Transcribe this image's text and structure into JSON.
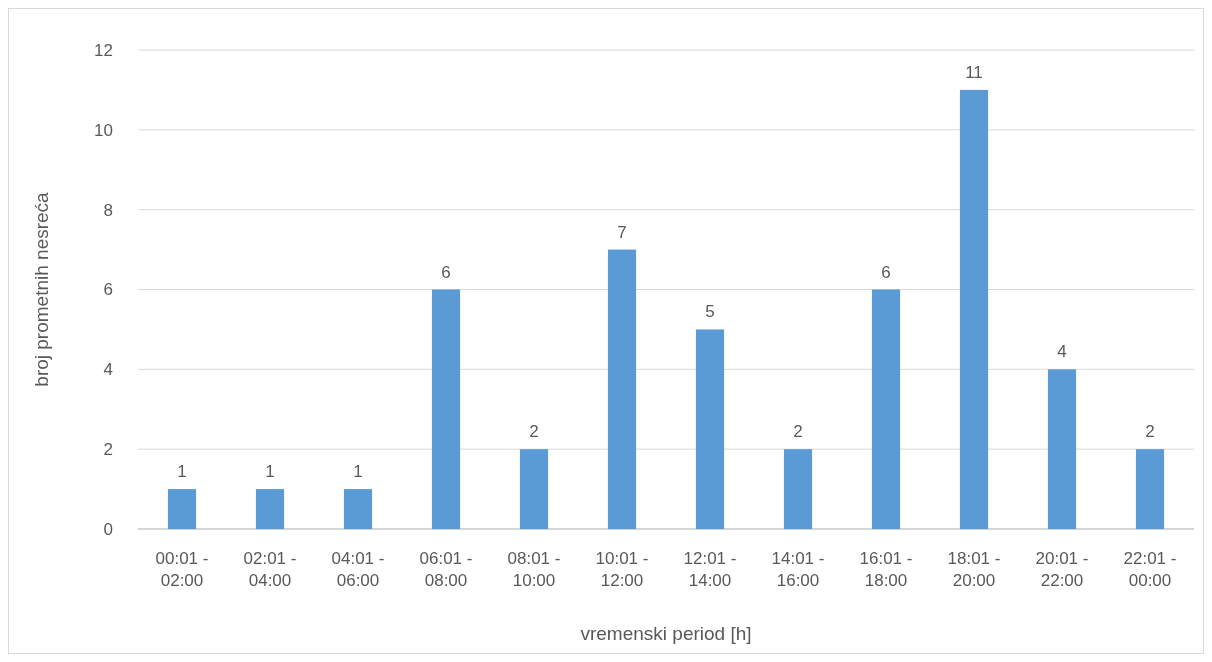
{
  "chart_data": {
    "type": "bar",
    "xlabel": "vremenski period [h]",
    "ylabel": "broj prometnih nesreća",
    "categories": [
      "00:01 - 02:00",
      "02:01 - 04:00",
      "04:01 - 06:00",
      "06:01 - 08:00",
      "08:01 - 10:00",
      "10:01 - 12:00",
      "12:01 - 14:00",
      "14:01 - 16:00",
      "16:01 - 18:00",
      "18:01 - 20:00",
      "20:01 - 22:00",
      "22:01 - 00:00"
    ],
    "values": [
      1,
      1,
      1,
      6,
      2,
      7,
      5,
      2,
      6,
      11,
      4,
      2
    ],
    "color": "#5b9bd5",
    "ylim": [
      0,
      12
    ],
    "yticks": [
      0,
      2,
      4,
      6,
      8,
      10,
      12
    ],
    "grid": "y",
    "data_labels": true
  }
}
